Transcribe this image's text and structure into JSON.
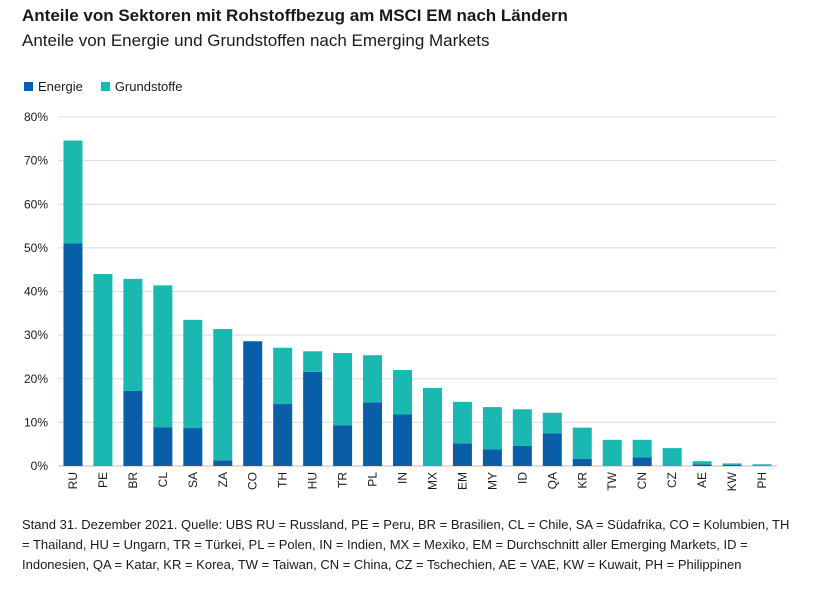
{
  "title": "Anteile von Sektoren mit Rohstoffbezug am MSCI EM nach Ländern",
  "subtitle": "Anteile von Energie und Grundstoffen nach Emerging Markets",
  "colors": {
    "energie": "#0a5ea8",
    "grundstoffe": "#1bb8b1",
    "grid": "#dcdcdc",
    "axis": "#bdbdbd"
  },
  "legend": [
    {
      "label": "Energie",
      "color": "#0a5ea8"
    },
    {
      "label": "Grundstoffe",
      "color": "#1bb8b1"
    }
  ],
  "chart_data": {
    "type": "bar",
    "stacked": true,
    "categories": [
      "RU",
      "PE",
      "BR",
      "CL",
      "SA",
      "ZA",
      "CO",
      "TH",
      "HU",
      "TR",
      "PL",
      "IN",
      "MX",
      "EM",
      "MY",
      "ID",
      "QA",
      "KR",
      "TW",
      "CN",
      "CZ",
      "AE",
      "KW",
      "PH"
    ],
    "series": [
      {
        "name": "Energie",
        "values": [
          51.0,
          0,
          17.2,
          8.9,
          8.7,
          1.3,
          28.6,
          14.2,
          21.6,
          9.3,
          14.6,
          11.8,
          0,
          5.2,
          3.8,
          4.6,
          7.5,
          1.6,
          0,
          2.0,
          0,
          0.4,
          0.3,
          0
        ]
      },
      {
        "name": "Grundstoffe",
        "values": [
          23.6,
          44.0,
          25.7,
          32.5,
          24.8,
          30.1,
          0,
          12.9,
          4.7,
          16.6,
          10.8,
          10.2,
          17.9,
          9.5,
          9.7,
          8.4,
          4.7,
          7.2,
          6.0,
          4.0,
          4.1,
          0.7,
          0.3,
          0.4
        ]
      }
    ],
    "ylim": [
      0,
      80
    ],
    "yticks": [
      "0%",
      "10%",
      "20%",
      "30%",
      "40%",
      "50%",
      "60%",
      "70%",
      "80%"
    ],
    "grid": true,
    "legend_position": "top-left"
  },
  "footnote": "Stand 31. Dezember 2021. Quelle: UBS RU = Russland, PE = Peru, BR = Brasilien, CL = Chile, SA = Südafrika, CO = Kolumbien, TH = Thailand, HU = Ungarn, TR = Türkei, PL = Polen, IN = Indien, MX = Mexiko, EM = Durchschnitt aller Emerging Markets, ID = Indonesien, QA = Katar, KR = Korea, TW = Taiwan, CN = China, CZ = Tschechien, AE = VAE, KW = Kuwait, PH = Philippinen"
}
